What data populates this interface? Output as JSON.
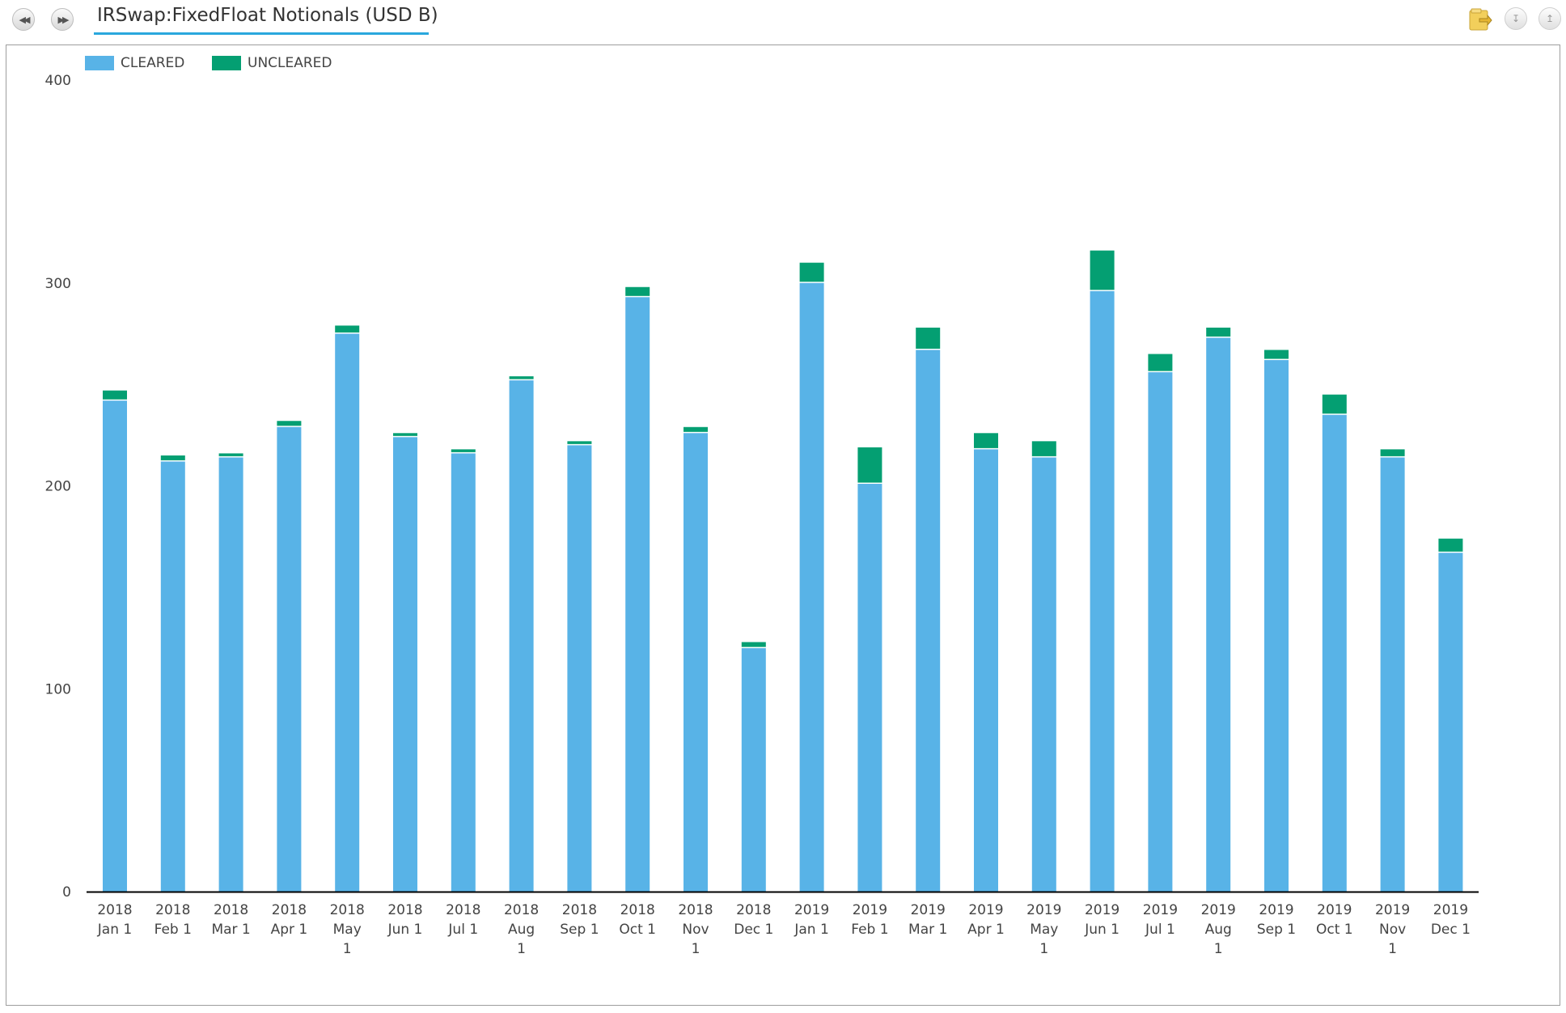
{
  "header": {
    "title": "IRSwap:FixedFloat Notionals (USD B)",
    "nav_back_icon": "rewind-icon",
    "nav_forward_icon": "fast-forward-icon",
    "export_icon": "folder-export-icon",
    "collapse_icon": "chevron-double-down-icon",
    "expand_icon": "chevron-double-up-icon"
  },
  "colors": {
    "cleared": "#58b3e7",
    "uncleared": "#049f72",
    "axis": "#000000",
    "accent": "#2aa7dd"
  },
  "chart_data": {
    "type": "bar",
    "stacked": true,
    "title": "",
    "xlabel": "",
    "ylabel": "",
    "ylim": [
      0,
      400
    ],
    "yticks": [
      0,
      100,
      200,
      300,
      400
    ],
    "grid": false,
    "legend_position": "top-left",
    "categories": [
      [
        "2018",
        "Jan 1"
      ],
      [
        "2018",
        "Feb 1"
      ],
      [
        "2018",
        "Mar 1"
      ],
      [
        "2018",
        "Apr 1"
      ],
      [
        "2018",
        "May",
        "1"
      ],
      [
        "2018",
        "Jun 1"
      ],
      [
        "2018",
        "Jul 1"
      ],
      [
        "2018",
        "Aug",
        "1"
      ],
      [
        "2018",
        "Sep 1"
      ],
      [
        "2018",
        "Oct 1"
      ],
      [
        "2018",
        "Nov",
        "1"
      ],
      [
        "2018",
        "Dec 1"
      ],
      [
        "2019",
        "Jan 1"
      ],
      [
        "2019",
        "Feb 1"
      ],
      [
        "2019",
        "Mar 1"
      ],
      [
        "2019",
        "Apr 1"
      ],
      [
        "2019",
        "May",
        "1"
      ],
      [
        "2019",
        "Jun 1"
      ],
      [
        "2019",
        "Jul 1"
      ],
      [
        "2019",
        "Aug",
        "1"
      ],
      [
        "2019",
        "Sep 1"
      ],
      [
        "2019",
        "Oct 1"
      ],
      [
        "2019",
        "Nov",
        "1"
      ],
      [
        "2019",
        "Dec 1"
      ]
    ],
    "series": [
      {
        "name": "CLEARED",
        "values": [
          242,
          212,
          214,
          229,
          275,
          224,
          216,
          252,
          220,
          293,
          226,
          120,
          300,
          201,
          267,
          218,
          214,
          296,
          256,
          273,
          262,
          235,
          214,
          167
        ]
      },
      {
        "name": "UNCLEARED",
        "values": [
          5,
          3,
          2,
          3,
          4,
          2,
          2,
          2,
          2,
          5,
          3,
          3,
          10,
          18,
          11,
          8,
          8,
          20,
          9,
          5,
          5,
          10,
          4,
          7
        ]
      }
    ]
  }
}
